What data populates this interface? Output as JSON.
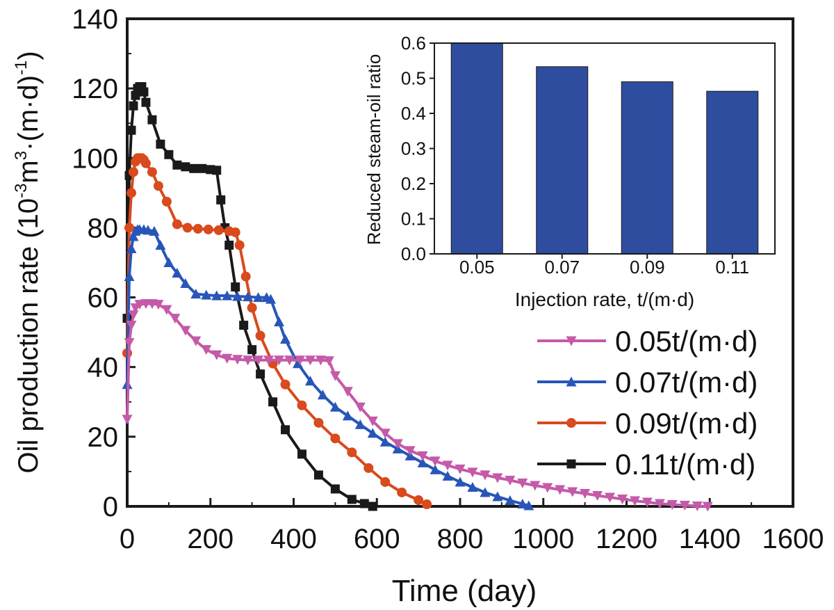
{
  "chart_data": [
    {
      "type": "line",
      "xlabel": "Time (day)",
      "ylabel_main": "Oil production rate (10",
      "ylabel_sup1": "-3",
      "ylabel_mid": "m",
      "ylabel_sup2": "3",
      "ylabel_mid2": "·(m·d)",
      "ylabel_sup3": "-1",
      "ylabel_close": ")",
      "xlim": [
        0,
        1600
      ],
      "ylim": [
        0,
        140
      ],
      "xticks": [
        "0",
        "200",
        "400",
        "600",
        "800",
        "1000",
        "1200",
        "1400",
        "1600"
      ],
      "yticks": [
        "0",
        "20",
        "40",
        "60",
        "80",
        "100",
        "120",
        "140"
      ],
      "legend_position": "right-middle",
      "series": [
        {
          "name": "0.11t/(m·d)",
          "color": "#1a1a1a",
          "marker": "square",
          "x": [
            0,
            5,
            10,
            15,
            20,
            25,
            30,
            35,
            40,
            45,
            60,
            80,
            100,
            120,
            140,
            160,
            180,
            200,
            215,
            225,
            235,
            245,
            260,
            280,
            300,
            320,
            350,
            380,
            420,
            460,
            500,
            540,
            570,
            590
          ],
          "y": [
            54,
            95,
            108,
            115,
            118,
            120,
            120.5,
            120.5,
            119,
            116,
            111,
            104,
            101,
            98,
            97.5,
            97,
            97,
            96.7,
            96.5,
            88,
            80,
            75,
            63,
            52,
            45,
            38,
            30,
            22,
            15,
            9,
            5,
            2,
            0.8,
            0
          ]
        },
        {
          "name": "0.09t/(m·d)",
          "color": "#d94a1c",
          "marker": "circle",
          "x": [
            0,
            5,
            10,
            15,
            20,
            25,
            30,
            35,
            40,
            45,
            60,
            75,
            95,
            120,
            145,
            170,
            195,
            220,
            245,
            260,
            270,
            285,
            300,
            320,
            350,
            380,
            420,
            460,
            500,
            540,
            580,
            620,
            660,
            700,
            720
          ],
          "y": [
            44,
            80,
            90,
            96,
            99,
            100,
            100,
            100,
            99.5,
            98.5,
            96,
            92,
            87.5,
            81,
            80,
            79.7,
            79.5,
            79.3,
            79,
            78.7,
            75,
            66,
            57,
            49,
            41,
            35,
            29,
            24,
            19.5,
            15.5,
            11,
            7,
            4,
            1.8,
            0.6
          ]
        },
        {
          "name": "0.07t/(m·d)",
          "color": "#2856b8",
          "marker": "triangle-up",
          "x": [
            0,
            5,
            10,
            15,
            20,
            25,
            30,
            40,
            50,
            65,
            80,
            100,
            120,
            140,
            165,
            190,
            215,
            240,
            265,
            290,
            315,
            335,
            345,
            365,
            380,
            410,
            440,
            470,
            500,
            530,
            560,
            590,
            620,
            650,
            680,
            710,
            740,
            770,
            800,
            830,
            860,
            890,
            920,
            950,
            965
          ],
          "y": [
            35,
            66,
            74,
            77.5,
            79,
            79.5,
            79.5,
            79.5,
            79.3,
            79,
            75,
            70,
            67,
            64,
            61,
            60.7,
            60.5,
            60.5,
            60.3,
            60.2,
            60,
            60,
            59.5,
            53,
            48,
            41,
            36,
            32,
            28.5,
            26,
            23.5,
            21,
            18.5,
            16.5,
            14.5,
            12.5,
            10.5,
            8.7,
            7,
            5.5,
            4,
            2.8,
            1.7,
            0.7,
            0.2
          ]
        },
        {
          "name": "0.05t/(m·d)",
          "color": "#c45aa8",
          "marker": "triangle-down",
          "x": [
            0,
            5,
            10,
            15,
            20,
            30,
            45,
            60,
            75,
            95,
            115,
            140,
            165,
            190,
            215,
            240,
            265,
            290,
            315,
            340,
            365,
            390,
            415,
            440,
            465,
            485,
            500,
            530,
            560,
            590,
            620,
            650,
            680,
            710,
            740,
            770,
            800,
            830,
            860,
            890,
            920,
            950,
            980,
            1010,
            1040,
            1070,
            1100,
            1130,
            1160,
            1190,
            1220,
            1250,
            1280,
            1310,
            1340,
            1370,
            1395
          ],
          "y": [
            25,
            47,
            52,
            55,
            57,
            58,
            58.2,
            58.2,
            58,
            56.5,
            54,
            50.5,
            47.5,
            45,
            43.5,
            42.5,
            42.2,
            42,
            42,
            42,
            42,
            42,
            42,
            42,
            42,
            41.8,
            37.5,
            33,
            28.5,
            24.5,
            21,
            18,
            16,
            14.5,
            13,
            11.8,
            10.7,
            9.8,
            9,
            8.2,
            7.5,
            6.7,
            6,
            5.4,
            4.8,
            4.2,
            3.7,
            3.1,
            2.6,
            2.1,
            1.6,
            1.2,
            0.8,
            0.5,
            0.3,
            0.1,
            0
          ]
        }
      ]
    },
    {
      "type": "bar",
      "title": "",
      "xlabel": "Injection rate, t/(m·d)",
      "ylabel": "Reduced steam-oil ratio",
      "categories": [
        "0.05",
        "0.07",
        "0.09",
        "0.11"
      ],
      "values": [
        0.6,
        0.533,
        0.49,
        0.463
      ],
      "ylim": [
        0,
        0.6
      ],
      "yticks": [
        "0.0",
        "0.1",
        "0.2",
        "0.3",
        "0.4",
        "0.5",
        "0.6"
      ],
      "bar_color": "#2e4d9e"
    }
  ]
}
